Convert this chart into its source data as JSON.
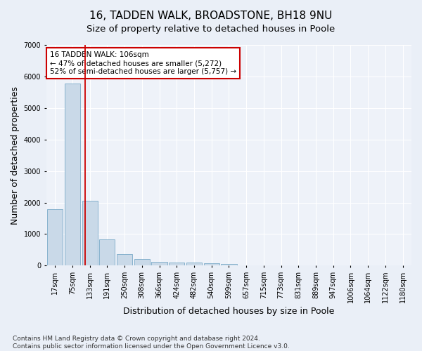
{
  "title": "16, TADDEN WALK, BROADSTONE, BH18 9NU",
  "subtitle": "Size of property relative to detached houses in Poole",
  "xlabel": "Distribution of detached houses by size in Poole",
  "ylabel": "Number of detached properties",
  "categories": [
    "17sqm",
    "75sqm",
    "133sqm",
    "191sqm",
    "250sqm",
    "308sqm",
    "366sqm",
    "424sqm",
    "482sqm",
    "540sqm",
    "599sqm",
    "657sqm",
    "715sqm",
    "773sqm",
    "831sqm",
    "889sqm",
    "947sqm",
    "1006sqm",
    "1064sqm",
    "1122sqm",
    "1180sqm"
  ],
  "values": [
    1780,
    5780,
    2060,
    820,
    360,
    205,
    115,
    100,
    100,
    75,
    60,
    0,
    0,
    0,
    0,
    0,
    0,
    0,
    0,
    0,
    0
  ],
  "bar_color": "#c9d9e8",
  "bar_edge_color": "#7aaac8",
  "vline_x": 1.72,
  "vline_color": "#cc0000",
  "annotation_text": "16 TADDEN WALK: 106sqm\n← 47% of detached houses are smaller (5,272)\n52% of semi-detached houses are larger (5,757) →",
  "annotation_box_color": "#ffffff",
  "annotation_box_edge": "#cc0000",
  "ylim": [
    0,
    7000
  ],
  "yticks": [
    0,
    1000,
    2000,
    3000,
    4000,
    5000,
    6000,
    7000
  ],
  "footer_text": "Contains HM Land Registry data © Crown copyright and database right 2024.\nContains public sector information licensed under the Open Government Licence v3.0.",
  "bg_color": "#eaeff7",
  "plot_bg_color": "#eef2f9",
  "title_fontsize": 11,
  "subtitle_fontsize": 9.5,
  "axis_label_fontsize": 9,
  "tick_fontsize": 7,
  "footer_fontsize": 6.5,
  "annot_fontsize": 7.5
}
